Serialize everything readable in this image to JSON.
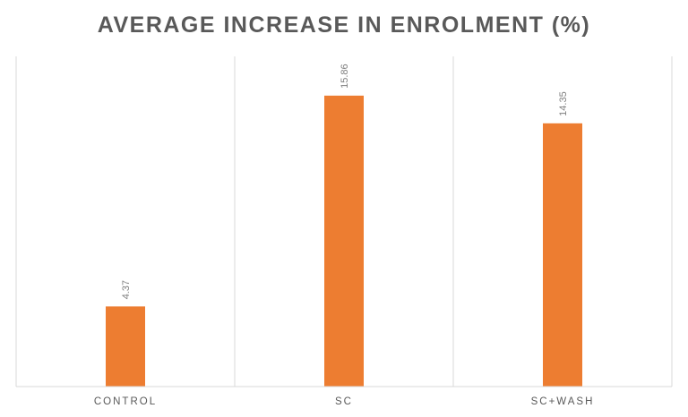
{
  "chart_data": {
    "type": "bar",
    "title": "AVERAGE INCREASE IN ENROLMENT (%)",
    "categories": [
      "CONTROL",
      "SC",
      "SC+WASH"
    ],
    "values": [
      4.37,
      15.86,
      14.35
    ],
    "data_labels": [
      "4.37",
      "15.86",
      "14.35"
    ],
    "ylim": [
      0,
      18
    ],
    "bar_color": "#ED7D31",
    "grid": "vertical-separators",
    "legend": "none"
  }
}
